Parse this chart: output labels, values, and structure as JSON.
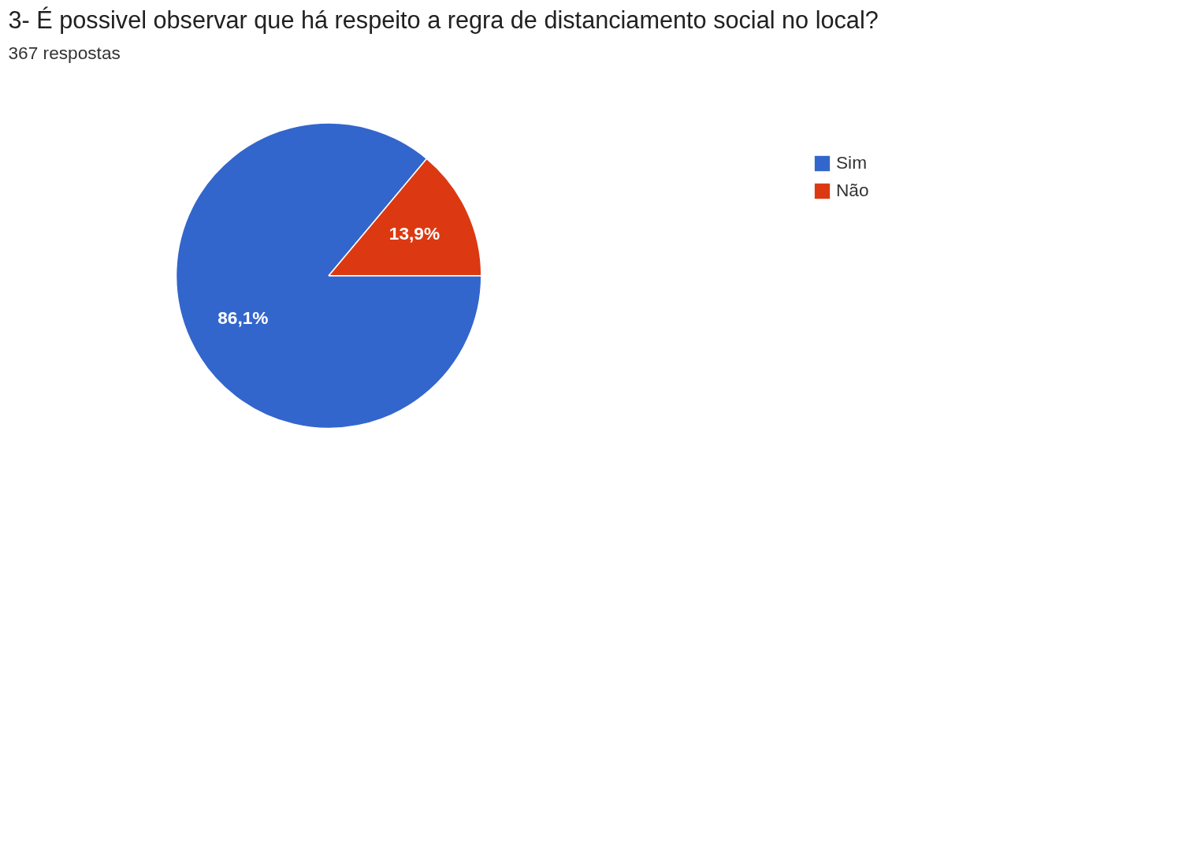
{
  "chart_data": {
    "type": "pie",
    "title": "3- É possivel observar que há respeito a regra de distanciamento social no local?",
    "subtitle": "367 respostas",
    "categories": [
      "Sim",
      "Não"
    ],
    "values": [
      86.1,
      13.9
    ],
    "colors": [
      "#3366cc",
      "#dc3912"
    ],
    "value_labels": [
      "86,1%",
      "13,9%"
    ],
    "legend": "top right"
  }
}
